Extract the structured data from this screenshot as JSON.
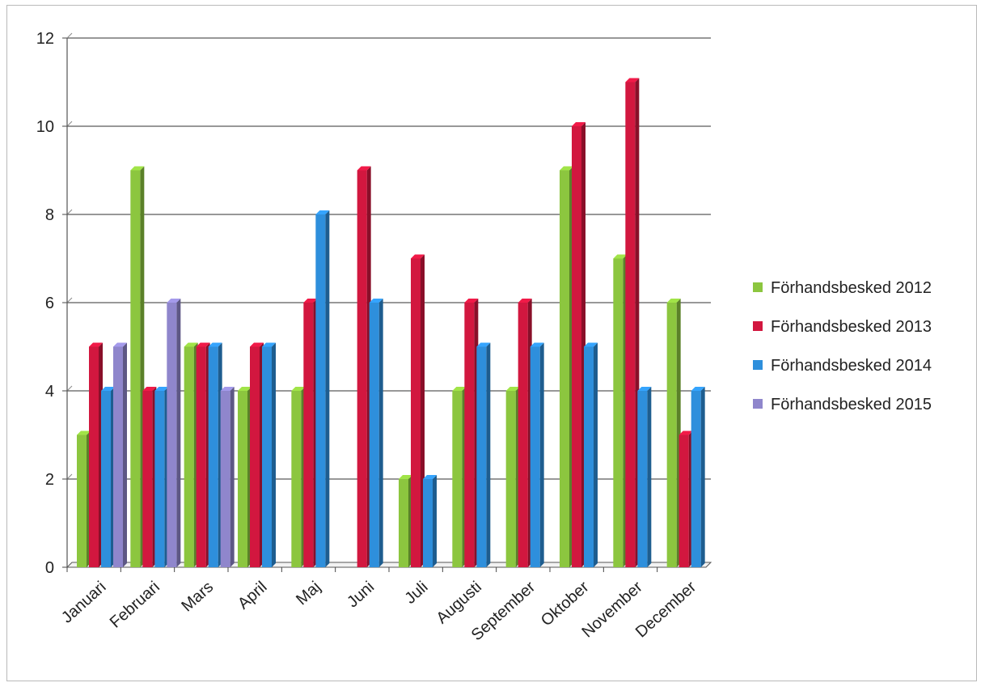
{
  "chart_data": {
    "type": "bar",
    "title": "",
    "xlabel": "",
    "ylabel": "",
    "ylim": [
      0,
      12
    ],
    "yticks": [
      0,
      2,
      4,
      6,
      8,
      10,
      12
    ],
    "grid": true,
    "legend_position": "right",
    "categories": [
      "Januari",
      "Februari",
      "Mars",
      "April",
      "Maj",
      "Juni",
      "Juli",
      "Augusti",
      "September",
      "Oktober",
      "November",
      "December"
    ],
    "series": [
      {
        "name": "Förhandsbesked 2012",
        "color": "#8cc63f",
        "values": [
          3,
          9,
          5,
          4,
          4,
          0,
          2,
          4,
          4,
          9,
          7,
          6
        ]
      },
      {
        "name": "Förhandsbesked 2013",
        "color": "#d2173f",
        "values": [
          5,
          4,
          5,
          5,
          6,
          9,
          7,
          6,
          6,
          10,
          11,
          3
        ]
      },
      {
        "name": "Förhandsbesked 2014",
        "color": "#2e8fdc",
        "values": [
          4,
          4,
          5,
          5,
          8,
          6,
          2,
          5,
          5,
          5,
          4,
          4
        ]
      },
      {
        "name": "Förhandsbesked 2015",
        "color": "#8f86cc",
        "values": [
          5,
          6,
          4,
          null,
          null,
          null,
          null,
          null,
          null,
          null,
          null,
          null
        ]
      }
    ]
  }
}
